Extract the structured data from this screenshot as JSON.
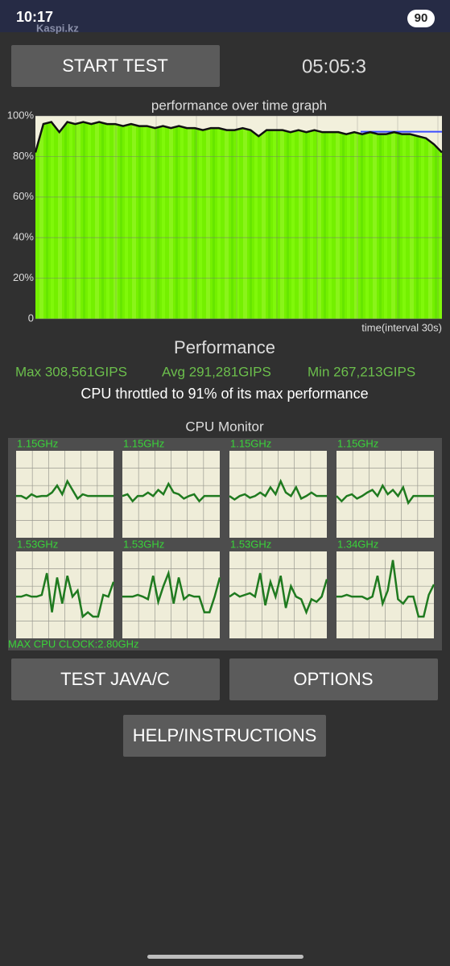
{
  "status_bar": {
    "time": "10:17",
    "watermark": "Kaspi.kz",
    "battery": "90"
  },
  "buttons": {
    "start": "START TEST",
    "test_java": "TEST JAVA/C",
    "options": "OPTIONS",
    "help": "HELP/INSTRUCTIONS"
  },
  "timer": "05:05:3",
  "performance_graph": {
    "type": "line",
    "title": "performance over time graph",
    "x_label": "time(interval 30s)",
    "ylim": [
      0,
      100
    ],
    "yticks": [
      0,
      {
        "value": 20,
        "label": "20%"
      },
      {
        "value": 40,
        "label": "40%"
      },
      {
        "value": 60,
        "label": "60%"
      },
      {
        "value": 80,
        "label": "80%"
      },
      {
        "value": 100,
        "label": "100%"
      }
    ],
    "values": [
      82,
      96,
      97,
      92,
      97,
      96,
      97,
      96,
      97,
      96,
      96,
      95,
      96,
      95,
      95,
      94,
      95,
      94,
      95,
      94,
      94,
      93,
      94,
      94,
      93,
      93,
      94,
      93,
      90,
      93,
      93,
      93,
      92,
      93,
      92,
      93,
      92,
      92,
      92,
      91,
      92,
      91,
      92,
      91,
      91,
      92,
      91,
      91,
      90,
      89,
      86,
      82
    ],
    "throttle_level": 91
  },
  "performance": {
    "heading": "Performance",
    "max": "Max 308,561GIPS",
    "avg": "Avg 291,281GIPS",
    "min": "Min 267,213GIPS",
    "throttle_note": "CPU throttled to 91% of its max performance"
  },
  "cpu_monitor": {
    "title": "CPU Monitor",
    "max_clock": "MAX CPU CLOCK:2.80GHz",
    "cores": [
      {
        "label": "1.15GHz",
        "values": [
          48,
          48,
          45,
          50,
          47,
          48,
          48,
          52,
          60,
          50,
          65,
          55,
          45,
          50,
          48,
          48,
          48,
          48,
          48,
          48
        ]
      },
      {
        "label": "1.15GHz",
        "values": [
          48,
          50,
          42,
          48,
          48,
          52,
          48,
          55,
          50,
          62,
          52,
          50,
          45,
          48,
          50,
          42,
          48,
          48,
          48,
          48
        ]
      },
      {
        "label": "1.15GHz",
        "values": [
          48,
          44,
          48,
          50,
          46,
          48,
          52,
          48,
          58,
          50,
          65,
          52,
          48,
          58,
          45,
          48,
          52,
          48,
          48,
          48
        ]
      },
      {
        "label": "1.15GHz",
        "values": [
          48,
          42,
          48,
          50,
          45,
          48,
          52,
          55,
          48,
          60,
          50,
          55,
          48,
          58,
          40,
          48,
          48,
          48,
          48,
          48
        ]
      },
      {
        "label": "1.53GHz",
        "values": [
          48,
          48,
          50,
          48,
          48,
          50,
          75,
          30,
          70,
          40,
          72,
          48,
          55,
          25,
          30,
          25,
          25,
          50,
          48,
          65
        ]
      },
      {
        "label": "1.53GHz",
        "values": [
          48,
          48,
          48,
          50,
          48,
          45,
          72,
          42,
          60,
          75,
          40,
          70,
          45,
          50,
          48,
          48,
          30,
          30,
          48,
          70
        ]
      },
      {
        "label": "1.53GHz",
        "values": [
          48,
          52,
          48,
          50,
          52,
          48,
          75,
          38,
          65,
          48,
          72,
          35,
          60,
          48,
          45,
          30,
          45,
          42,
          48,
          68
        ]
      },
      {
        "label": "1.34GHz",
        "values": [
          48,
          48,
          50,
          48,
          48,
          48,
          45,
          48,
          72,
          40,
          55,
          90,
          45,
          40,
          48,
          48,
          25,
          25,
          50,
          62
        ]
      }
    ]
  }
}
